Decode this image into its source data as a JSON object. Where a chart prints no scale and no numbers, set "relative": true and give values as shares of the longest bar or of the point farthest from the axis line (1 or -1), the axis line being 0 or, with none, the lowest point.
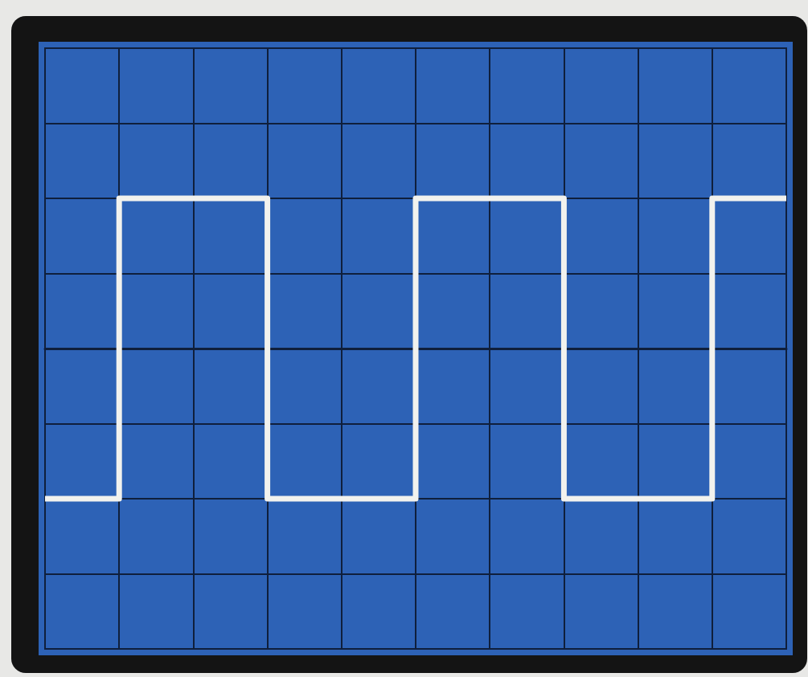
{
  "chart_data": {
    "type": "step",
    "categories": [
      null,
      null,
      null,
      null,
      null,
      null,
      null,
      null,
      null,
      null,
      null
    ],
    "relative": true,
    "grid": true,
    "marker": "none",
    "series": [
      {
        "color": "#f2f2ee",
        "values": [
          -1,
          1,
          1,
          -1,
          -1,
          1,
          1,
          -1,
          -1,
          1,
          1
        ]
      }
    ]
  }
}
